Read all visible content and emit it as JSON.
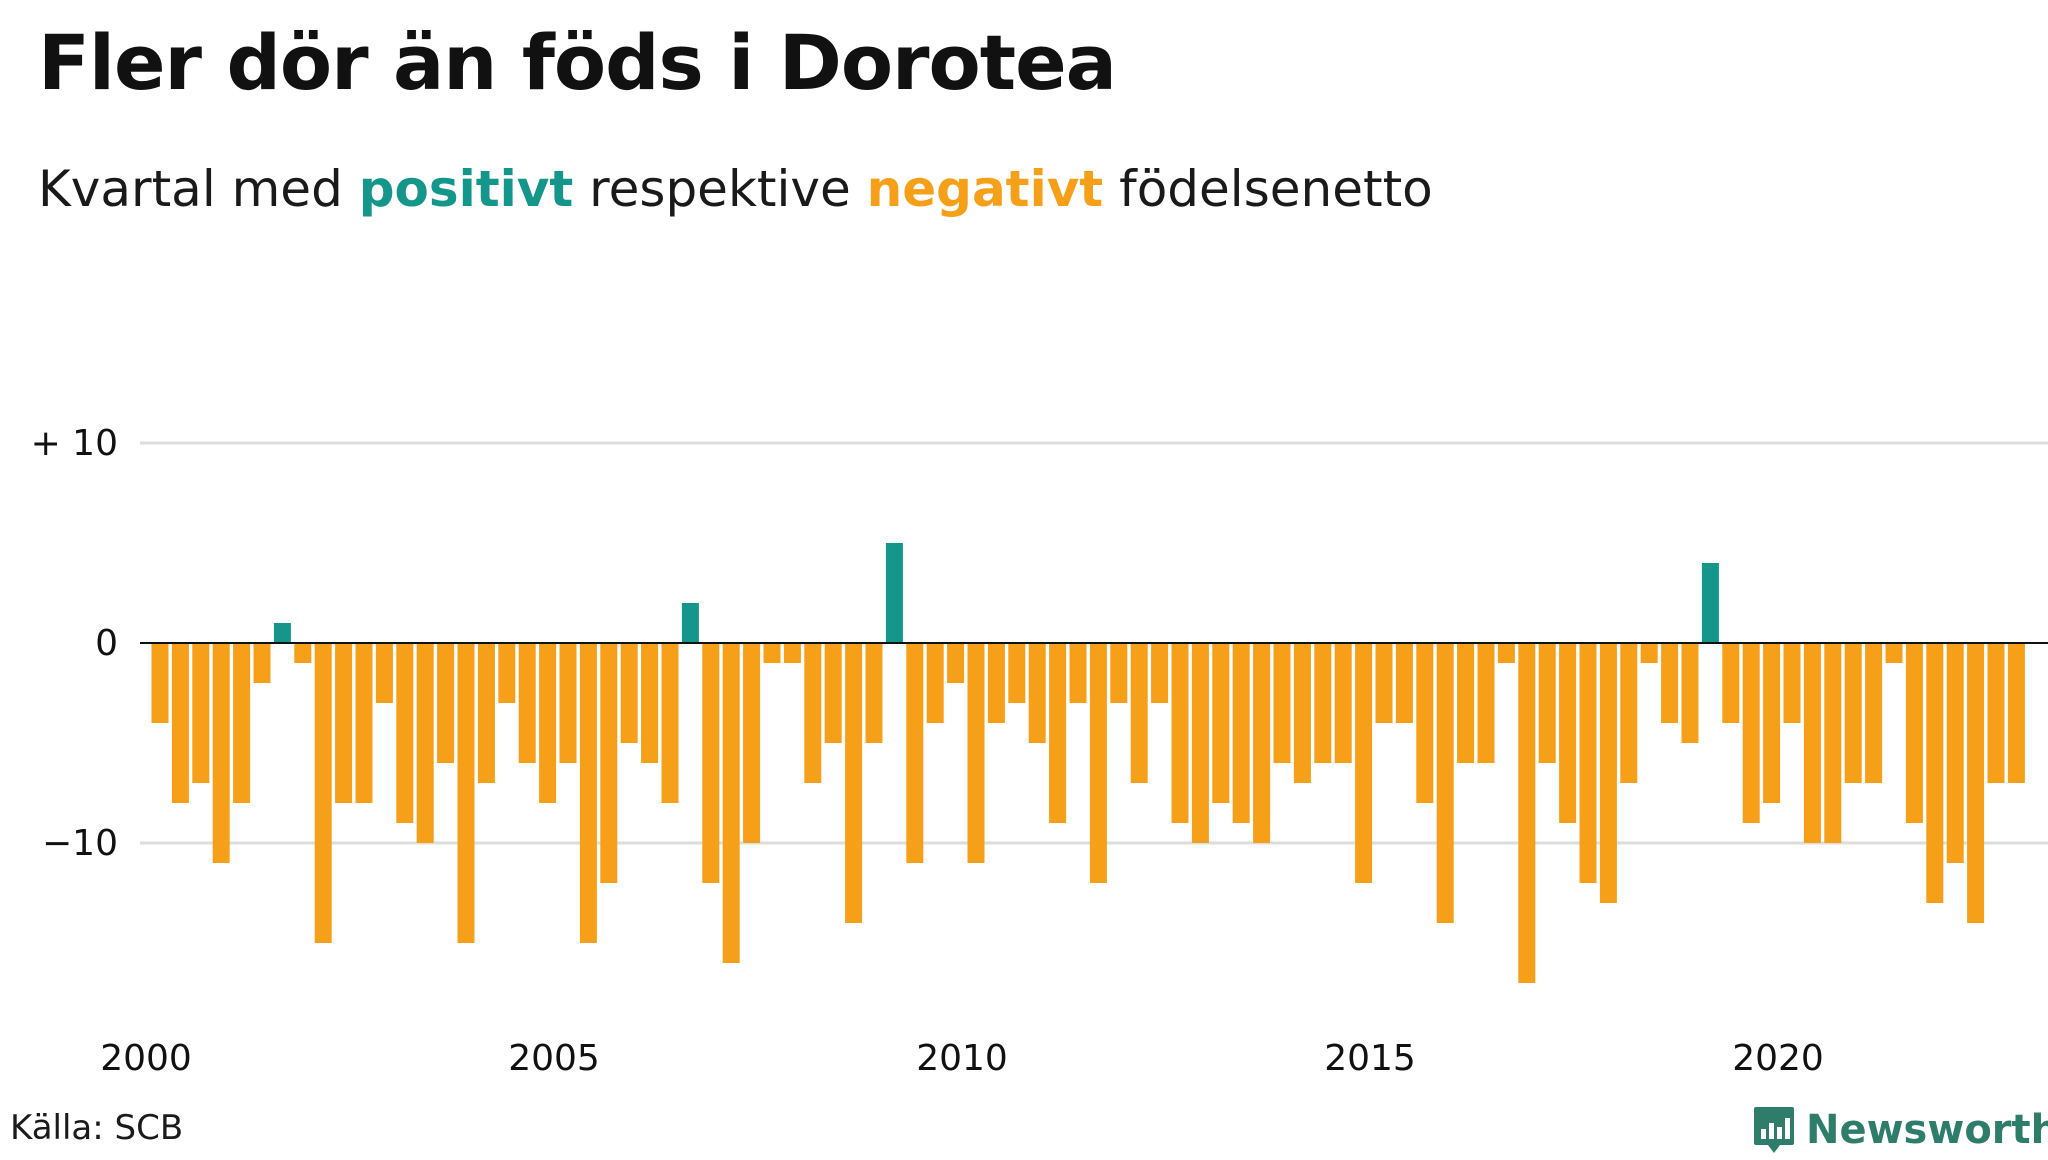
{
  "title": "Fler dör än föds i Dorotea",
  "subtitle": {
    "prefix": "Kvartal med ",
    "positive": "positivt",
    "middle": " respektive ",
    "negative": "negativt",
    "suffix": " födelsenetto"
  },
  "source": "Källa: SCB",
  "brand": "Newsworthy",
  "colors": {
    "positive": "#15968a",
    "negative": "#f6a01a",
    "grid": "#dddddd",
    "zero": "#111111",
    "brand": "#2e7d6b"
  },
  "chart_data": {
    "type": "bar",
    "ylim": [
      -17,
      10
    ],
    "yticks": [
      {
        "value": 10,
        "label": "+ 10"
      },
      {
        "value": 0,
        "label": "0"
      },
      {
        "value": -10,
        "label": "−10"
      }
    ],
    "xticks": [
      "2000",
      "2005",
      "2010",
      "2015",
      "2020"
    ],
    "start_year": 2000,
    "grid": true,
    "values": [
      -4,
      -8,
      -7,
      -11,
      -8,
      -2,
      1,
      -1,
      -15,
      -8,
      -8,
      -3,
      -9,
      -10,
      -6,
      -15,
      -7,
      -3,
      -6,
      -8,
      -6,
      -15,
      -12,
      -5,
      -6,
      -8,
      2,
      -12,
      -16,
      -10,
      -1,
      -1,
      -7,
      -5,
      -14,
      -5,
      5,
      -11,
      -4,
      -2,
      -11,
      -4,
      -3,
      -5,
      -9,
      -3,
      -12,
      -3,
      -7,
      -3,
      -9,
      -10,
      -8,
      -9,
      -10,
      -6,
      -7,
      -6,
      -6,
      -12,
      -4,
      -4,
      -8,
      -14,
      -6,
      -6,
      -1,
      -17,
      -6,
      -9,
      -12,
      -13,
      -7,
      -1,
      -4,
      -5,
      4,
      -4,
      -9,
      -8,
      -4,
      -10,
      -10,
      -7,
      -7,
      -1,
      -9,
      -13,
      -11,
      -14,
      -7,
      -7
    ]
  }
}
